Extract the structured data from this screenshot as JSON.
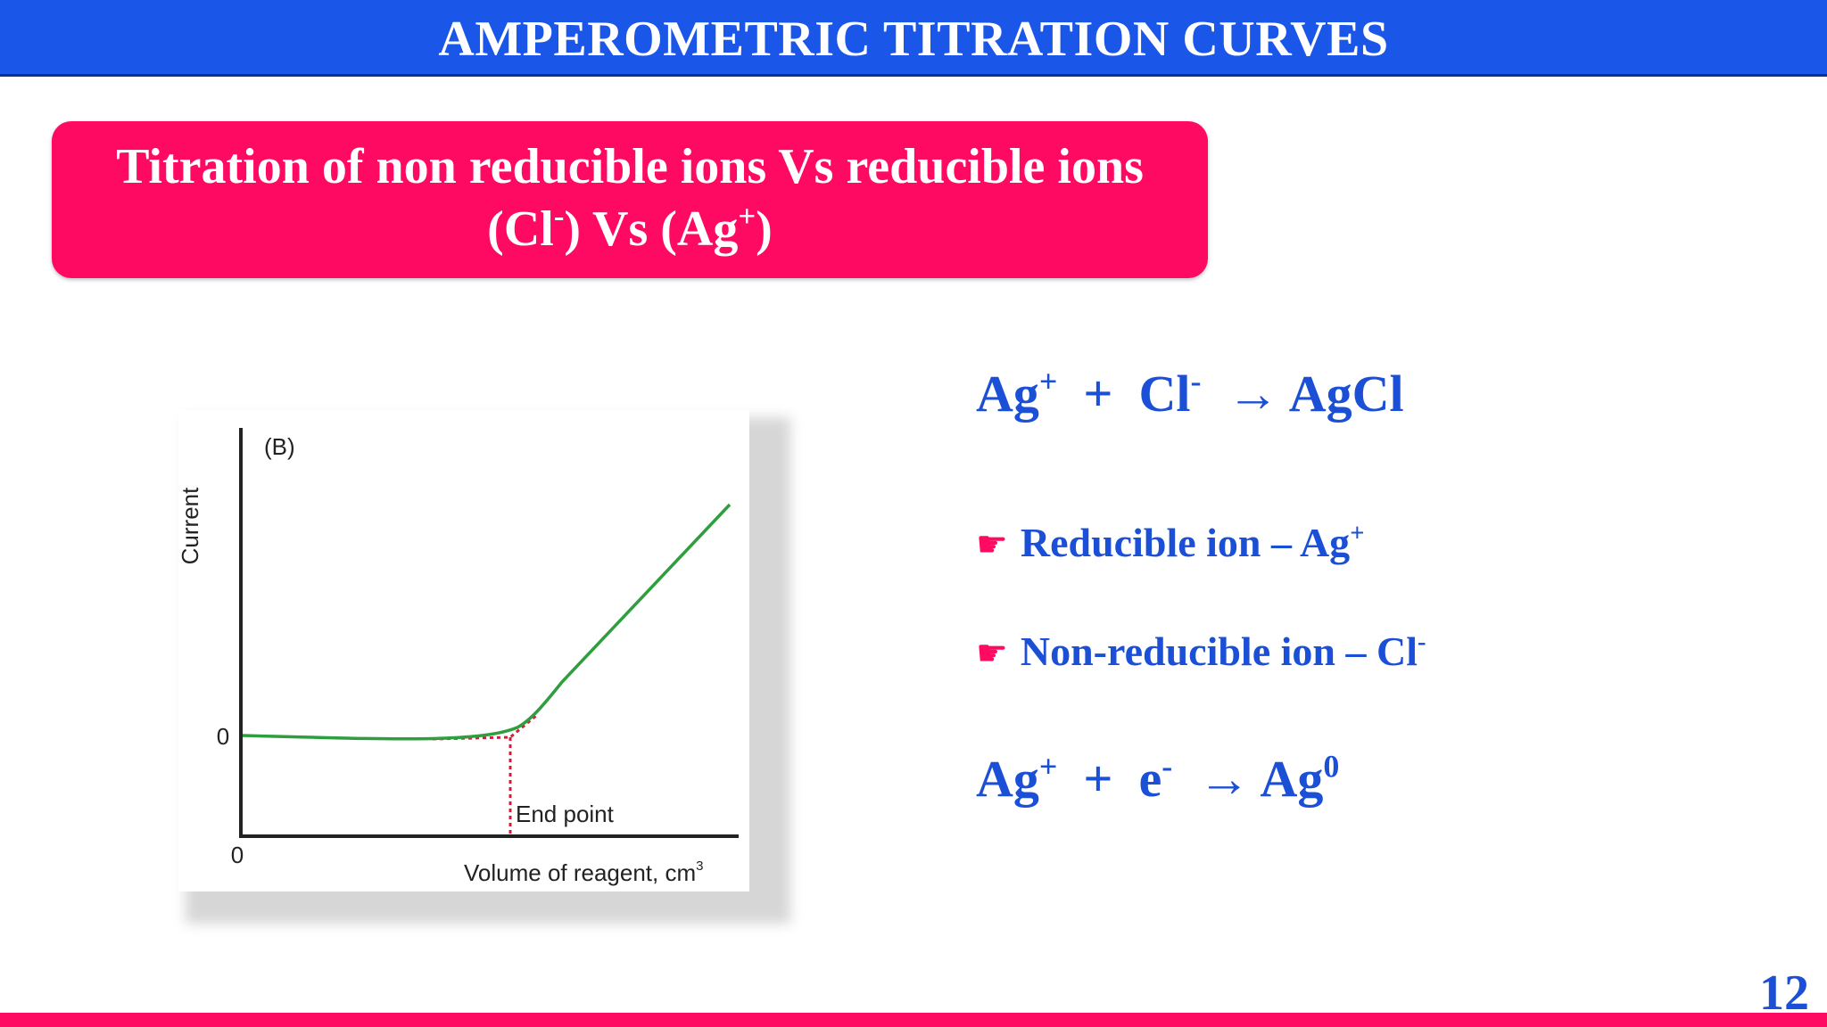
{
  "header": {
    "title": "AMPEROMETRIC TITRATION CURVES"
  },
  "subtitle": {
    "line1": "Titration of non reducible ions Vs reducible ions",
    "line2_a": "(Cl",
    "line2_a_sup": "-",
    "line2_b": ") Vs (Ag",
    "line2_b_sup": "+",
    "line2_c": ")"
  },
  "figure": {
    "panel_label": "(B)",
    "ylabel": "Current",
    "xlabel": "Volume of reagent, cm",
    "xlabel_sup": "3",
    "y_zero": "0",
    "x_zero": "0",
    "end_point_label": "End point",
    "curve_color": "#2e9e3e",
    "marker_color": "#d81b3c"
  },
  "equation1": {
    "a": "Ag",
    "a_sup": "+",
    "b": "  +  Cl",
    "b_sup": "-",
    "c": "  → AgCl"
  },
  "bullets": [
    {
      "icon": "pointing-hand-icon",
      "text": "Reducible ion – Ag",
      "sup": "+"
    },
    {
      "icon": "pointing-hand-icon",
      "text": "Non-reducible ion – Cl",
      "sup": "-"
    }
  ],
  "equation2": {
    "a": "Ag",
    "a_sup": "+",
    "b": "  +  e",
    "b_sup": "-",
    "c": "  → Ag",
    "c_sup": "0"
  },
  "page_number": "12",
  "colors": {
    "header": "#1a56e8",
    "accent": "#ff0a62",
    "text_blue": "#1a4fd6"
  }
}
